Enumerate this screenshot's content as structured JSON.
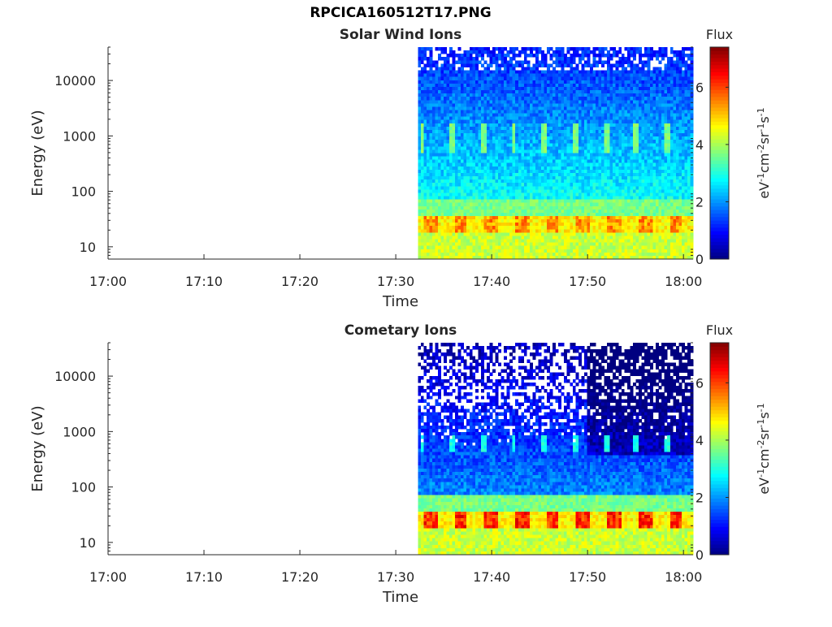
{
  "figure": {
    "title": "RPCICA160512T17.PNG"
  },
  "chart_data": [
    {
      "type": "heatmap",
      "title": "Solar Wind Ions",
      "xlabel": "Time",
      "ylabel": "Energy (eV)",
      "x_ticks": [
        "17:00",
        "17:10",
        "17:20",
        "17:30",
        "17:40",
        "17:50",
        "18:00"
      ],
      "x_range": [
        "17:00",
        "18:01"
      ],
      "y_scale": "log",
      "y_ticks": [
        "10",
        "100",
        "1000",
        "10000"
      ],
      "y_range": [
        6,
        40000
      ],
      "data_start": "17:32",
      "colorbar": {
        "title": "Flux",
        "label_base": "eV",
        "unit_parts": [
          [
            "-1",
            "cm"
          ],
          [
            "-2",
            "sr"
          ],
          [
            "-1",
            "s"
          ],
          [
            "-1",
            ""
          ]
        ],
        "range": [
          0,
          7.4
        ],
        "ticks": [
          "0",
          "2",
          "4",
          "6"
        ],
        "colormap": "jet"
      },
      "features": {
        "low_energy_band": {
          "energy": [
            18,
            35
          ],
          "peak_flux": 6.0,
          "period_min": 3.2
        },
        "mid_energy_blobs": {
          "energy": [
            500,
            1600
          ],
          "peak_flux": 4.0
        },
        "background_flux": [
          1.2,
          3.5
        ]
      }
    },
    {
      "type": "heatmap",
      "title": "Cometary Ions",
      "xlabel": "Time",
      "ylabel": "Energy (eV)",
      "x_ticks": [
        "17:00",
        "17:10",
        "17:20",
        "17:30",
        "17:40",
        "17:50",
        "18:00"
      ],
      "x_range": [
        "17:00",
        "18:01"
      ],
      "y_scale": "log",
      "y_ticks": [
        "10",
        "100",
        "1000",
        "10000"
      ],
      "y_range": [
        6,
        40000
      ],
      "data_start": "17:32",
      "colorbar": {
        "title": "Flux",
        "label_base": "eV",
        "unit_parts": [
          [
            "-1",
            "cm"
          ],
          [
            "-2",
            "sr"
          ],
          [
            "-1",
            "s"
          ],
          [
            "-1",
            ""
          ]
        ],
        "range": [
          0,
          7.4
        ],
        "ticks": [
          "0",
          "2",
          "4",
          "6"
        ],
        "colormap": "jet"
      },
      "features": {
        "low_energy_band": {
          "energy": [
            18,
            35
          ],
          "peak_flux": 6.8,
          "period_min": 3.2
        },
        "mid_energy_blobs": {
          "energy": [
            400,
            900
          ],
          "peak_flux": 3.2
        },
        "background_flux": [
          0.4,
          2.5
        ]
      }
    }
  ]
}
